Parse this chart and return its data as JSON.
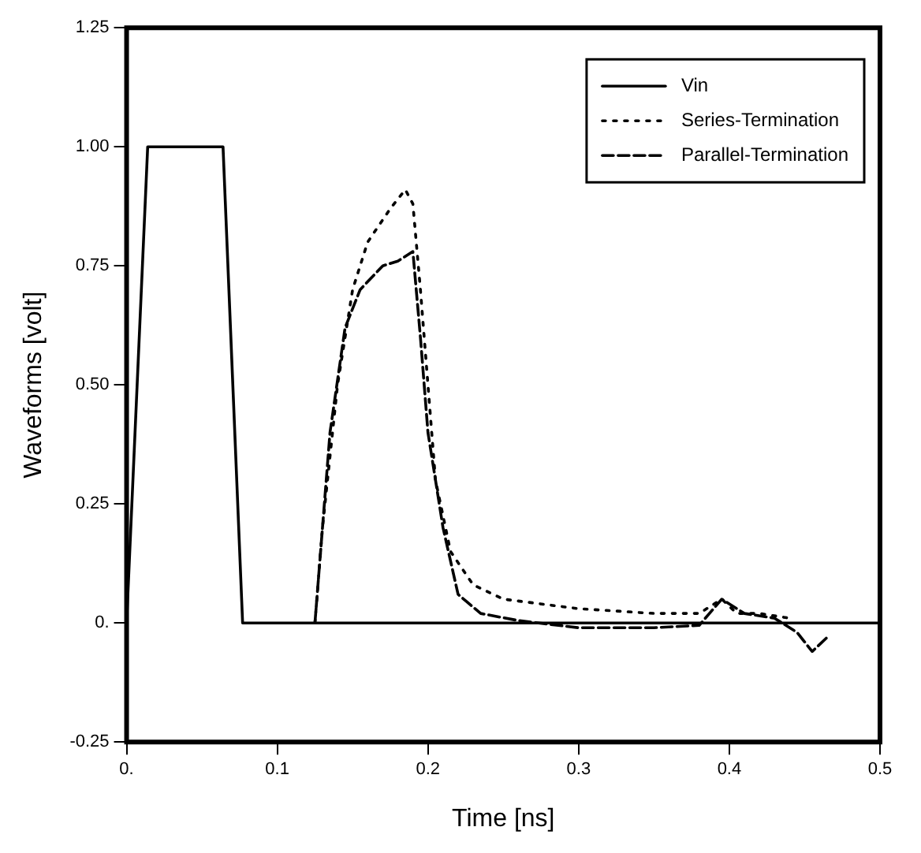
{
  "chart_data": {
    "type": "line",
    "xlabel": "Time [ns]",
    "ylabel": "Waveforms [volt]",
    "xlim": [
      0,
      0.5
    ],
    "xticks": [
      {
        "value": 0,
        "label": "0."
      },
      0.1,
      0.2,
      0.3,
      0.4,
      0.5
    ],
    "ylim": [
      -0.25,
      1.25
    ],
    "yticks": [
      {
        "value": -0.25,
        "label": "-0.25"
      },
      {
        "value": 0,
        "label": "0."
      },
      {
        "value": 0.25,
        "label": "0.25"
      },
      {
        "value": 0.5,
        "label": "0.50"
      },
      {
        "value": 0.75,
        "label": "0.75"
      },
      {
        "value": 1,
        "label": "1.00"
      },
      {
        "value": 1.25,
        "label": "1.25"
      }
    ],
    "grid": false,
    "legend": "top right",
    "marker": "none",
    "series": [
      {
        "name": "Vin",
        "color": "#000000",
        "line_style": "solid",
        "x": [
          0,
          0.014,
          0.064,
          0.077,
          0.5
        ],
        "values": [
          0,
          1,
          1,
          0,
          0
        ]
      },
      {
        "name": "Series-Termination",
        "color": "#000000",
        "line_style": "dotted",
        "x": [
          0.125,
          0.13,
          0.14,
          0.15,
          0.16,
          0.175,
          0.185,
          0.19,
          0.195,
          0.2,
          0.205,
          0.215,
          0.23,
          0.25,
          0.3,
          0.35,
          0.38,
          0.395,
          0.405,
          0.42,
          0.44
        ],
        "values": [
          0,
          0.2,
          0.5,
          0.7,
          0.8,
          0.87,
          0.91,
          0.88,
          0.7,
          0.5,
          0.3,
          0.15,
          0.08,
          0.05,
          0.03,
          0.02,
          0.02,
          0.05,
          0.02,
          0.02,
          0.01
        ]
      },
      {
        "name": "Parallel-Termination",
        "color": "#000000",
        "line_style": "dashed",
        "x": [
          0.125,
          0.135,
          0.145,
          0.155,
          0.17,
          0.18,
          0.19,
          0.195,
          0.2,
          0.21,
          0.22,
          0.235,
          0.26,
          0.3,
          0.35,
          0.38,
          0.395,
          0.41,
          0.43,
          0.445,
          0.455,
          0.465
        ],
        "values": [
          0,
          0.4,
          0.62,
          0.7,
          0.75,
          0.76,
          0.78,
          0.6,
          0.4,
          0.2,
          0.06,
          0.02,
          0.005,
          -0.01,
          -0.01,
          -0.005,
          0.05,
          0.02,
          0.01,
          -0.02,
          -0.06,
          -0.03
        ]
      }
    ]
  }
}
